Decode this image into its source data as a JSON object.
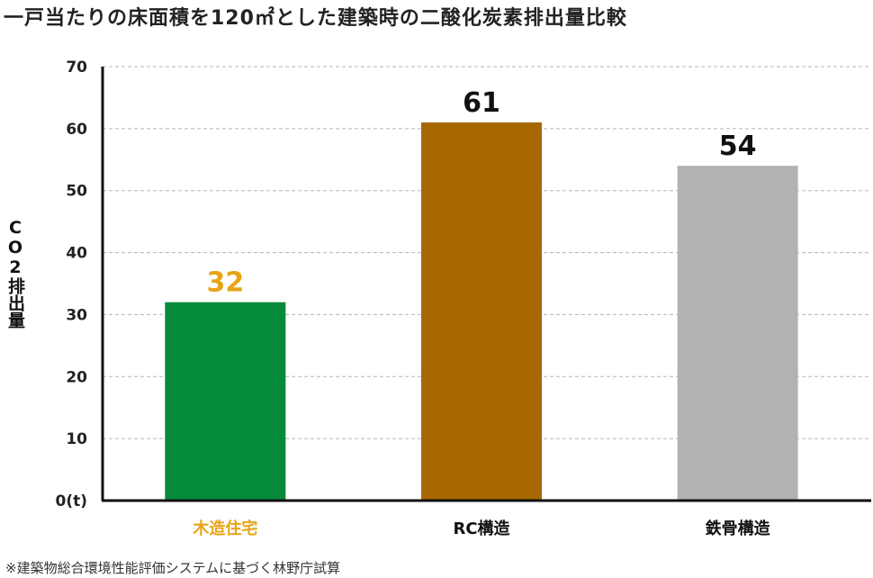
{
  "chart_data": {
    "type": "bar",
    "title": "一戸当たりの床面積を120㎡とした建築時の二酸化炭素排出量比較",
    "ylabel": "CO2排出量",
    "xlabel": "",
    "ylim": [
      0,
      70
    ],
    "yticks": [
      "0(t)",
      "10",
      "20",
      "30",
      "40",
      "50",
      "60",
      "70"
    ],
    "categories": [
      "木造住宅",
      "RC構造",
      "鉄骨構造"
    ],
    "values": [
      32,
      61,
      54
    ],
    "data_labels": [
      "32",
      "61",
      "54"
    ],
    "colors": [
      "#068b3b",
      "#a86800",
      "#b2b2b2"
    ],
    "label_colors": [
      "#e8a317",
      "#111111",
      "#111111"
    ],
    "category_label_colors": [
      "#e8a317",
      "#111111",
      "#111111"
    ],
    "grid": true,
    "footnote": "※建築物総合環境性能評価システムに基づく林野庁試算"
  }
}
